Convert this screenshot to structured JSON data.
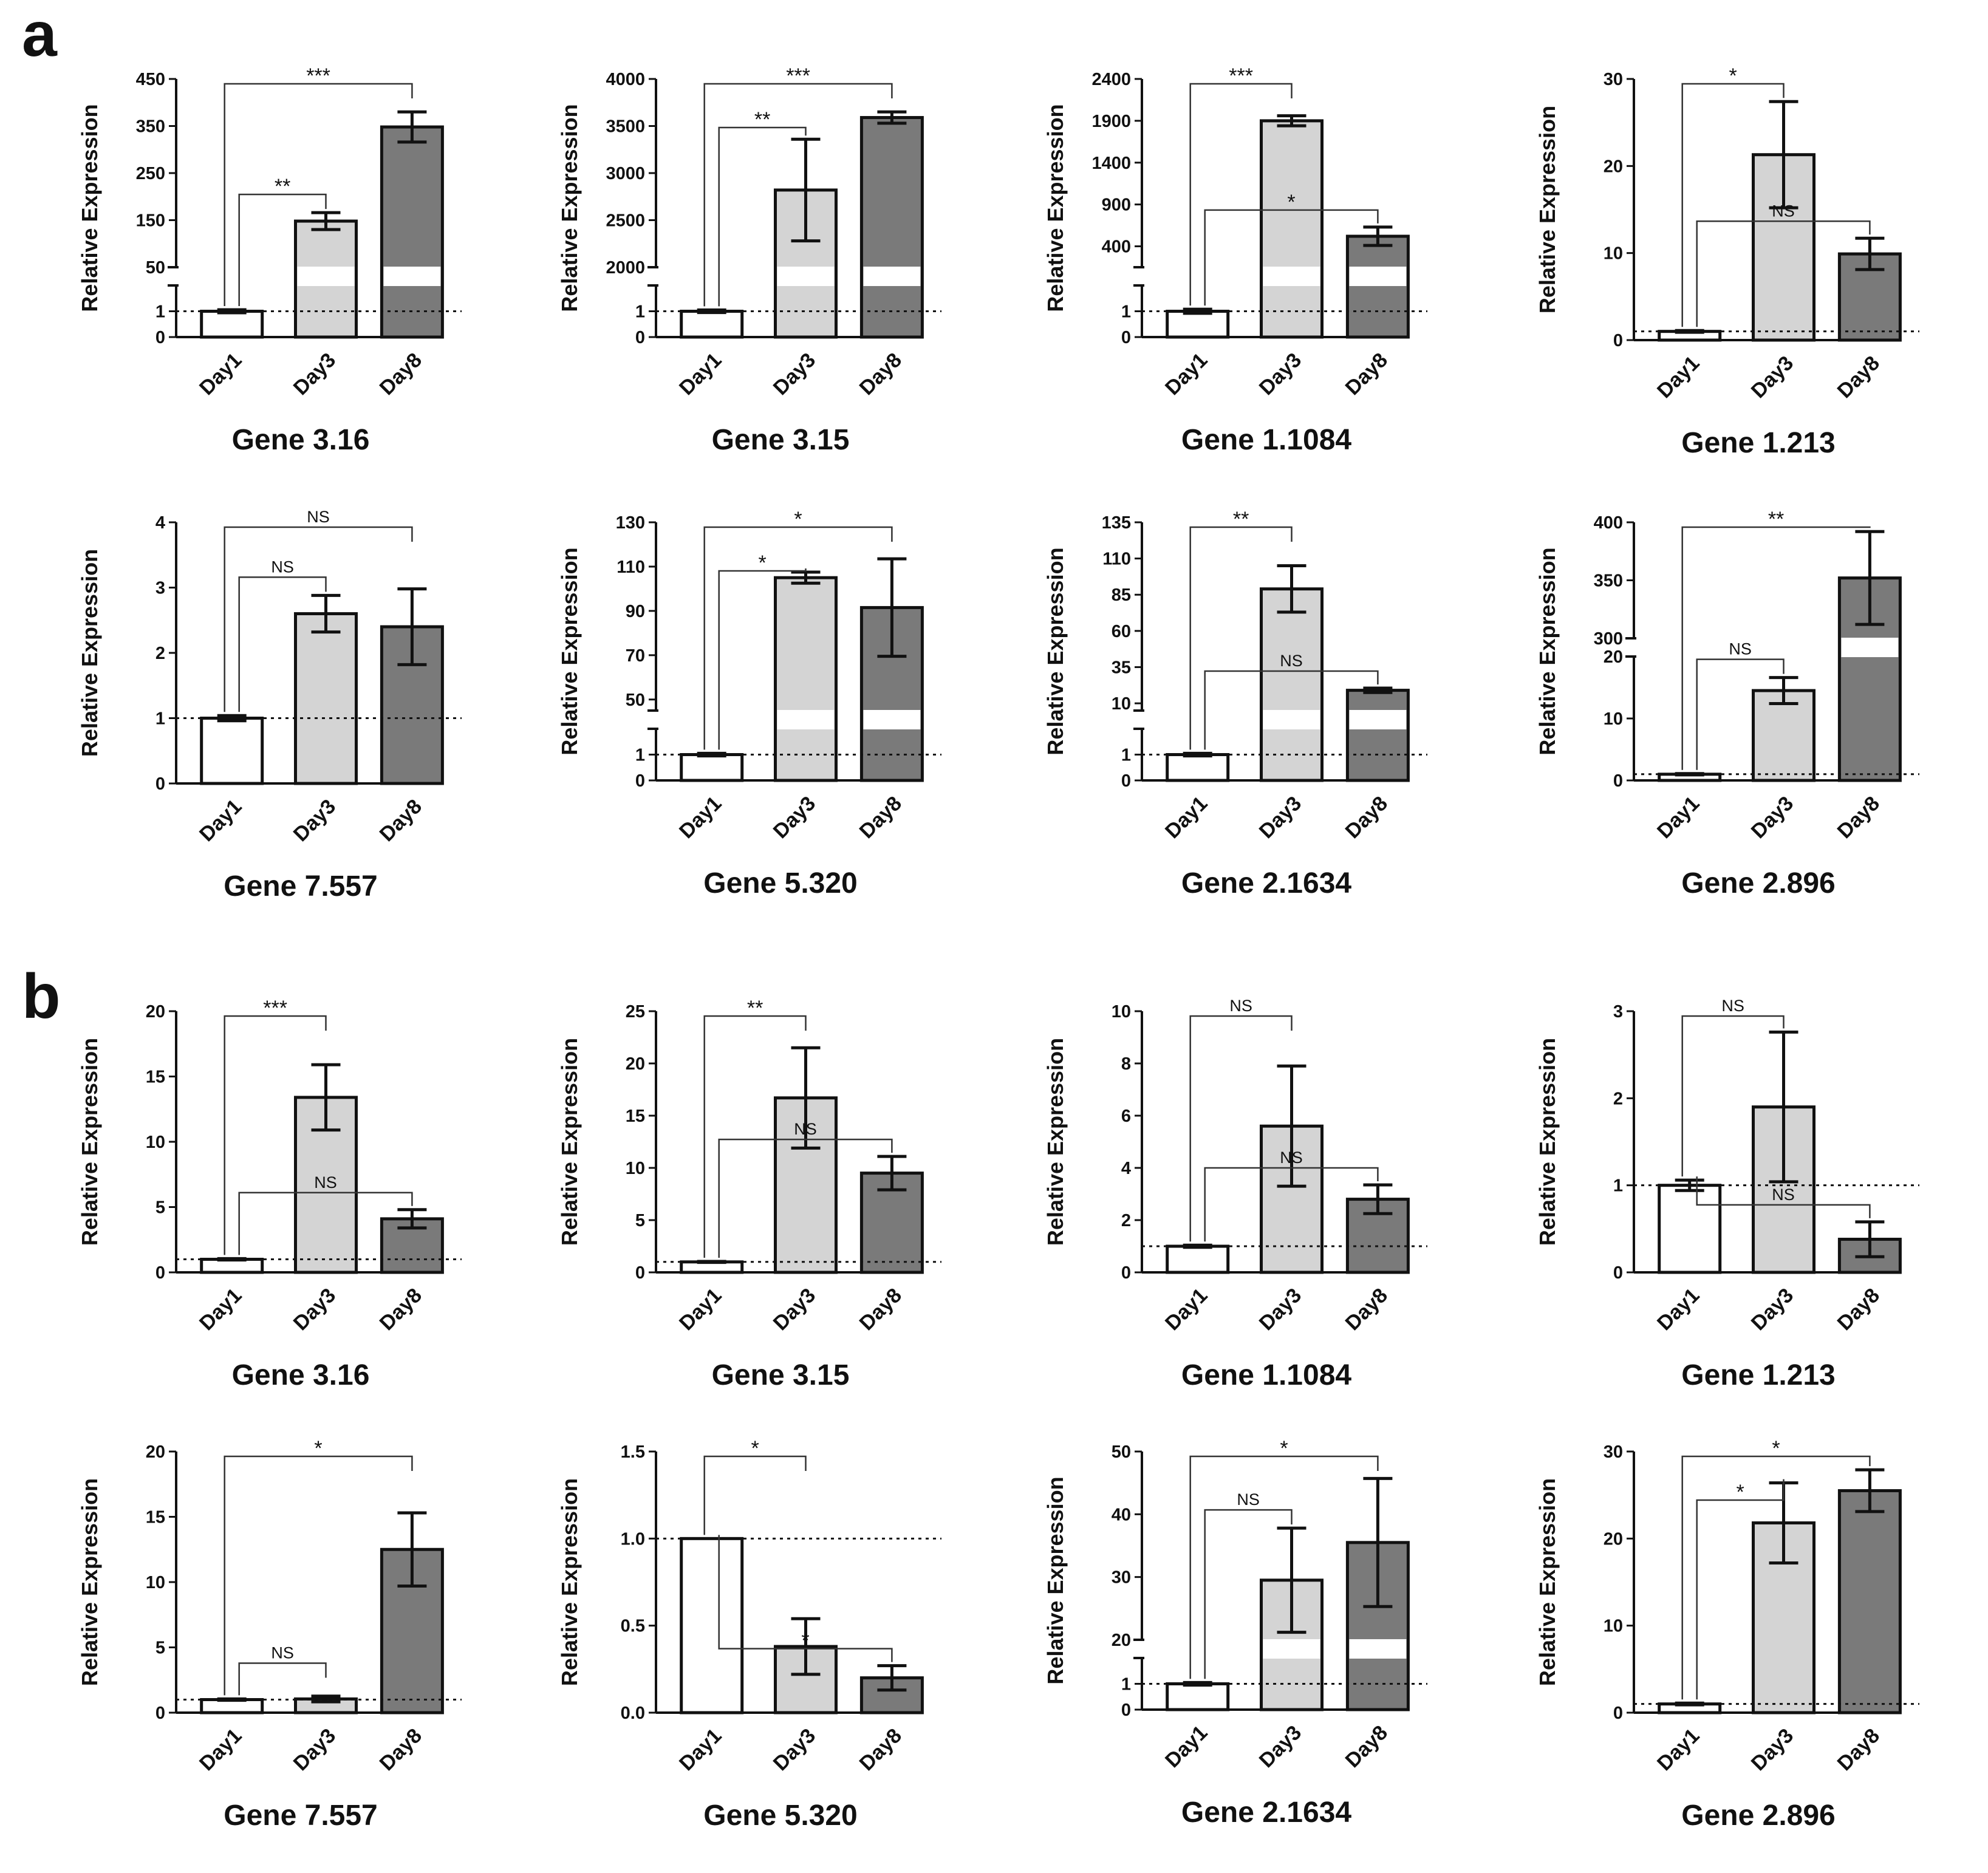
{
  "panel_labels": [
    "a",
    "b"
  ],
  "colors": {
    "Day1": "#ffffff",
    "Day3": "#d4d4d4",
    "Day8": "#7a7a7a",
    "axis": "#111111"
  },
  "chart_data": [
    {
      "panel": "a",
      "type": "bar",
      "title": "Gene 3.16",
      "ylabel": "Relative Expression",
      "categories": [
        "Day1",
        "Day3",
        "Day8"
      ],
      "values": [
        1,
        148,
        348
      ],
      "errors": [
        0.06,
        18,
        32
      ],
      "axis_break": {
        "low": [
          0,
          2
        ],
        "high": [
          50,
          450
        ]
      },
      "ticks_low": [
        "0",
        "1"
      ],
      "ticks_high": [
        "50",
        "150",
        "250",
        "350",
        "450"
      ],
      "reference_line": 1,
      "significance": [
        {
          "from": 0,
          "to": 1,
          "label": "**",
          "level": 1
        },
        {
          "from": 0,
          "to": 2,
          "label": "***",
          "level": 2
        }
      ]
    },
    {
      "panel": "a",
      "type": "bar",
      "title": "Gene 3.15",
      "ylabel": "Relative Expression",
      "categories": [
        "Day1",
        "Day3",
        "Day8"
      ],
      "values": [
        1,
        2820,
        3590
      ],
      "errors": [
        0.05,
        540,
        60
      ],
      "axis_break": {
        "low": [
          0,
          2
        ],
        "high": [
          2000,
          4000
        ]
      },
      "ticks_low": [
        "0",
        "1"
      ],
      "ticks_high": [
        "2000",
        "2500",
        "3000",
        "3500",
        "4000"
      ],
      "reference_line": 1,
      "significance": [
        {
          "from": 0,
          "to": 1,
          "label": "**",
          "level": 1
        },
        {
          "from": 0,
          "to": 2,
          "label": "***",
          "level": 2
        }
      ]
    },
    {
      "panel": "a",
      "type": "bar",
      "title": "Gene 1.1084",
      "ylabel": "Relative Expression",
      "categories": [
        "Day1",
        "Day3",
        "Day8"
      ],
      "values": [
        1,
        1900,
        520
      ],
      "errors": [
        0.08,
        60,
        110
      ],
      "axis_break": {
        "low": [
          0,
          2
        ],
        "high": [
          150,
          2400
        ]
      },
      "ticks_low": [
        "0",
        "1"
      ],
      "ticks_high": [
        "400",
        "900",
        "1400",
        "1900",
        "2400"
      ],
      "reference_line": 1,
      "significance": [
        {
          "from": 0,
          "to": 1,
          "label": "***",
          "level": 2
        },
        {
          "from": 0,
          "to": 2,
          "label": "*",
          "level": 1
        }
      ]
    },
    {
      "panel": "a",
      "type": "bar",
      "title": "Gene 1.213",
      "ylabel": "Relative Expression",
      "categories": [
        "Day1",
        "Day3",
        "Day8"
      ],
      "values": [
        1,
        21.3,
        9.9
      ],
      "errors": [
        0.1,
        6.1,
        1.8
      ],
      "ylim": [
        0,
        30
      ],
      "ticks": [
        "0",
        "10",
        "20",
        "30"
      ],
      "reference_line": 1,
      "significance": [
        {
          "from": 0,
          "to": 1,
          "label": "*",
          "level": 2
        },
        {
          "from": 0,
          "to": 2,
          "label": "NS",
          "level": 1
        }
      ]
    },
    {
      "panel": "a",
      "type": "bar",
      "title": "Gene 7.557",
      "ylabel": "Relative Expression",
      "categories": [
        "Day1",
        "Day3",
        "Day8"
      ],
      "values": [
        1,
        2.6,
        2.4
      ],
      "errors": [
        0.04,
        0.28,
        0.58
      ],
      "ylim": [
        0,
        4
      ],
      "ticks": [
        "0",
        "1",
        "2",
        "3",
        "4"
      ],
      "reference_line": 1,
      "significance": [
        {
          "from": 0,
          "to": 1,
          "label": "NS",
          "level": 1
        },
        {
          "from": 0,
          "to": 2,
          "label": "NS",
          "level": 2
        }
      ]
    },
    {
      "panel": "a",
      "type": "bar",
      "title": "Gene 5.320",
      "ylabel": "Relative Expression",
      "categories": [
        "Day1",
        "Day3",
        "Day8"
      ],
      "values": [
        1,
        105,
        91.5
      ],
      "errors": [
        0.05,
        2.5,
        22
      ],
      "axis_break": {
        "low": [
          0,
          2
        ],
        "high": [
          45,
          130
        ]
      },
      "ticks_low": [
        "0",
        "1"
      ],
      "ticks_high": [
        "50",
        "70",
        "90",
        "110",
        "130"
      ],
      "reference_line": 1,
      "significance": [
        {
          "from": 0,
          "to": 1,
          "label": "*",
          "level": 1
        },
        {
          "from": 0,
          "to": 2,
          "label": "*",
          "level": 2
        }
      ]
    },
    {
      "panel": "a",
      "type": "bar",
      "title": "Gene 2.1634",
      "ylabel": "Relative Expression",
      "categories": [
        "Day1",
        "Day3",
        "Day8"
      ],
      "values": [
        1,
        89,
        19
      ],
      "errors": [
        0.05,
        16,
        1.5
      ],
      "axis_break": {
        "low": [
          0,
          2
        ],
        "high": [
          5,
          135
        ]
      },
      "ticks_low": [
        "0",
        "1"
      ],
      "ticks_high": [
        "10",
        "35",
        "60",
        "85",
        "110",
        "135"
      ],
      "reference_line": 1,
      "significance": [
        {
          "from": 0,
          "to": 1,
          "label": "**",
          "level": 2
        },
        {
          "from": 0,
          "to": 2,
          "label": "NS",
          "level": 1
        }
      ]
    },
    {
      "panel": "a",
      "type": "bar",
      "title": "Gene 2.896",
      "ylabel": "Relative Expression",
      "categories": [
        "Day1",
        "Day3",
        "Day8"
      ],
      "values": [
        1,
        14.5,
        352
      ],
      "errors": [
        0.1,
        2.1,
        40
      ],
      "axis_break": {
        "low": [
          0,
          20
        ],
        "high": [
          300,
          400
        ]
      },
      "ticks_low": [
        "0",
        "10",
        "20"
      ],
      "ticks_high": [
        "300",
        "350",
        "400"
      ],
      "reference_line": 1,
      "significance": [
        {
          "from": 0,
          "to": 1,
          "label": "NS",
          "level": 1
        },
        {
          "from": 0,
          "to": 2,
          "label": "**",
          "level": 2
        }
      ]
    },
    {
      "panel": "b",
      "type": "bar",
      "title": "Gene 3.16",
      "ylabel": "Relative Expression",
      "categories": [
        "Day1",
        "Day3",
        "Day8"
      ],
      "values": [
        1,
        13.4,
        4.1
      ],
      "errors": [
        0.05,
        2.5,
        0.7
      ],
      "ylim": [
        0,
        20
      ],
      "ticks": [
        "0",
        "5",
        "10",
        "15",
        "20"
      ],
      "reference_line": 1,
      "significance": [
        {
          "from": 0,
          "to": 1,
          "label": "***",
          "level": 2
        },
        {
          "from": 0,
          "to": 2,
          "label": "NS",
          "level": 1
        }
      ]
    },
    {
      "panel": "b",
      "type": "bar",
      "title": "Gene 3.15",
      "ylabel": "Relative Expression",
      "categories": [
        "Day1",
        "Day3",
        "Day8"
      ],
      "values": [
        1,
        16.7,
        9.5
      ],
      "errors": [
        0.05,
        4.8,
        1.6
      ],
      "ylim": [
        0,
        25
      ],
      "ticks": [
        "0",
        "5",
        "10",
        "15",
        "20",
        "25"
      ],
      "reference_line": 1,
      "significance": [
        {
          "from": 0,
          "to": 1,
          "label": "**",
          "level": 2
        },
        {
          "from": 0,
          "to": 2,
          "label": "NS",
          "level": 1
        }
      ]
    },
    {
      "panel": "b",
      "type": "bar",
      "title": "Gene 1.1084",
      "ylabel": "Relative Expression",
      "categories": [
        "Day1",
        "Day3",
        "Day8"
      ],
      "values": [
        1,
        5.6,
        2.8
      ],
      "errors": [
        0.04,
        2.3,
        0.55
      ],
      "ylim": [
        0,
        10
      ],
      "ticks": [
        "0",
        "2",
        "4",
        "6",
        "8",
        "10"
      ],
      "reference_line": 1,
      "significance": [
        {
          "from": 0,
          "to": 1,
          "label": "NS",
          "level": 2
        },
        {
          "from": 0,
          "to": 2,
          "label": "NS",
          "level": 1
        }
      ]
    },
    {
      "panel": "b",
      "type": "bar",
      "title": "Gene 1.213",
      "ylabel": "Relative Expression",
      "categories": [
        "Day1",
        "Day3",
        "Day8"
      ],
      "values": [
        1,
        1.9,
        0.38
      ],
      "errors": [
        0.06,
        0.86,
        0.2
      ],
      "ylim": [
        0,
        3
      ],
      "ticks": [
        "0",
        "1",
        "2",
        "3"
      ],
      "reference_line": 1,
      "significance": [
        {
          "from": 0,
          "to": 1,
          "label": "NS",
          "level": 2
        },
        {
          "from": 0,
          "to": 2,
          "label": "NS",
          "level": 1
        }
      ]
    },
    {
      "panel": "b",
      "type": "bar",
      "title": "Gene 7.557",
      "ylabel": "Relative Expression",
      "categories": [
        "Day1",
        "Day3",
        "Day8"
      ],
      "values": [
        1,
        1.05,
        12.5
      ],
      "errors": [
        0.05,
        0.22,
        2.8
      ],
      "ylim": [
        0,
        20
      ],
      "ticks": [
        "0",
        "5",
        "10",
        "15",
        "20"
      ],
      "reference_line": 1,
      "significance": [
        {
          "from": 0,
          "to": 1,
          "label": "NS",
          "level": 1
        },
        {
          "from": 0,
          "to": 2,
          "label": "*",
          "level": 2
        }
      ]
    },
    {
      "panel": "b",
      "type": "bar",
      "title": "Gene 5.320",
      "ylabel": "Relative Expression",
      "categories": [
        "Day1",
        "Day3",
        "Day8"
      ],
      "values": [
        1,
        0.38,
        0.2
      ],
      "errors": [
        0.0,
        0.16,
        0.07
      ],
      "ylim": [
        0,
        1.5
      ],
      "ticks": [
        "0.0",
        "0.5",
        "1.0",
        "1.5"
      ],
      "reference_line": 1,
      "significance": [
        {
          "from": 0,
          "to": 1,
          "label": "*",
          "level": 2
        },
        {
          "from": 0,
          "to": 2,
          "label": "*",
          "level": 1
        }
      ]
    },
    {
      "panel": "b",
      "type": "bar",
      "title": "Gene 2.1634",
      "ylabel": "Relative Expression",
      "categories": [
        "Day1",
        "Day3",
        "Day8"
      ],
      "values": [
        1,
        29.5,
        35.5
      ],
      "errors": [
        0.05,
        8.3,
        10.2
      ],
      "axis_break": {
        "low": [
          0,
          2
        ],
        "high": [
          20,
          50
        ]
      },
      "ticks_low": [
        "0",
        "1"
      ],
      "ticks_high": [
        "20",
        "30",
        "40",
        "50"
      ],
      "reference_line": 1,
      "significance": [
        {
          "from": 0,
          "to": 1,
          "label": "NS",
          "level": 1
        },
        {
          "from": 0,
          "to": 2,
          "label": "*",
          "level": 2
        }
      ]
    },
    {
      "panel": "b",
      "type": "bar",
      "title": "Gene 2.896",
      "ylabel": "Relative Expression",
      "categories": [
        "Day1",
        "Day3",
        "Day8"
      ],
      "values": [
        1,
        21.8,
        25.5
      ],
      "errors": [
        0.1,
        4.6,
        2.4
      ],
      "ylim": [
        0,
        30
      ],
      "ticks": [
        "0",
        "10",
        "20",
        "30"
      ],
      "reference_line": 1,
      "significance": [
        {
          "from": 0,
          "to": 1,
          "label": "*",
          "level": 1
        },
        {
          "from": 0,
          "to": 2,
          "label": "*",
          "level": 2
        }
      ]
    }
  ]
}
